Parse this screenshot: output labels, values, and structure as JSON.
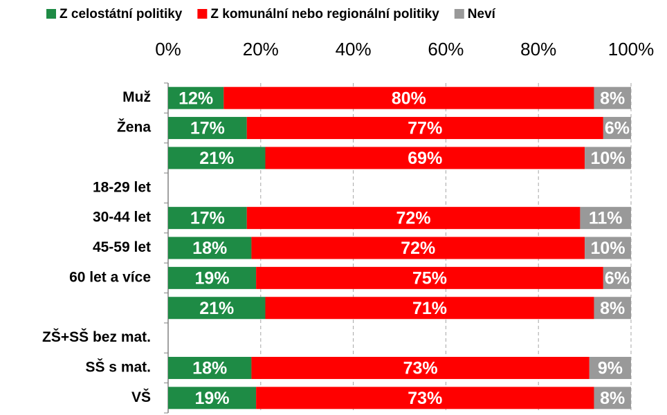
{
  "chart_data": {
    "type": "stacked-bar-horizontal",
    "categories": [
      "Muž",
      "Žena",
      null,
      "18-29 let",
      "30-44 let",
      "45-59 let",
      "60 let a více",
      null,
      "ZŠ+SŠ bez mat.",
      "SŠ s mat.",
      "VŠ"
    ],
    "series": [
      {
        "name": "Z celostátní politiky",
        "color": "#1e8b45",
        "values": [
          12,
          17,
          21,
          null,
          17,
          18,
          19,
          21,
          null,
          18,
          19
        ],
        "value_labels": [
          "12%",
          "17%",
          "21%",
          null,
          "17%",
          "18%",
          "19%",
          "21%",
          null,
          "18%",
          "19%"
        ]
      },
      {
        "name": "Z komunální nebo regionální politiky",
        "color": "#ff0000",
        "values": [
          80,
          77,
          69,
          null,
          72,
          72,
          75,
          71,
          null,
          73,
          73
        ],
        "value_labels": [
          "80%",
          "77%",
          "69%",
          null,
          "72%",
          "72%",
          "75%",
          "71%",
          null,
          "73%",
          "73%"
        ]
      },
      {
        "name": "Neví",
        "color": "#999999",
        "values": [
          8,
          6,
          10,
          null,
          11,
          10,
          6,
          8,
          null,
          9,
          8
        ],
        "value_labels": [
          "8%",
          "6%",
          "10%",
          null,
          "11%",
          "10%",
          "6%",
          "8%",
          null,
          "9%",
          "8%"
        ]
      }
    ],
    "xlim": [
      0,
      100
    ],
    "xticks": [
      {
        "value": 0,
        "label": "0%"
      },
      {
        "value": 20,
        "label": "20%"
      },
      {
        "value": 40,
        "label": "40%"
      },
      {
        "value": 60,
        "label": "60%"
      },
      {
        "value": 80,
        "label": "80%"
      },
      {
        "value": 100,
        "label": "100%"
      }
    ],
    "grid": true,
    "legend": "top"
  }
}
